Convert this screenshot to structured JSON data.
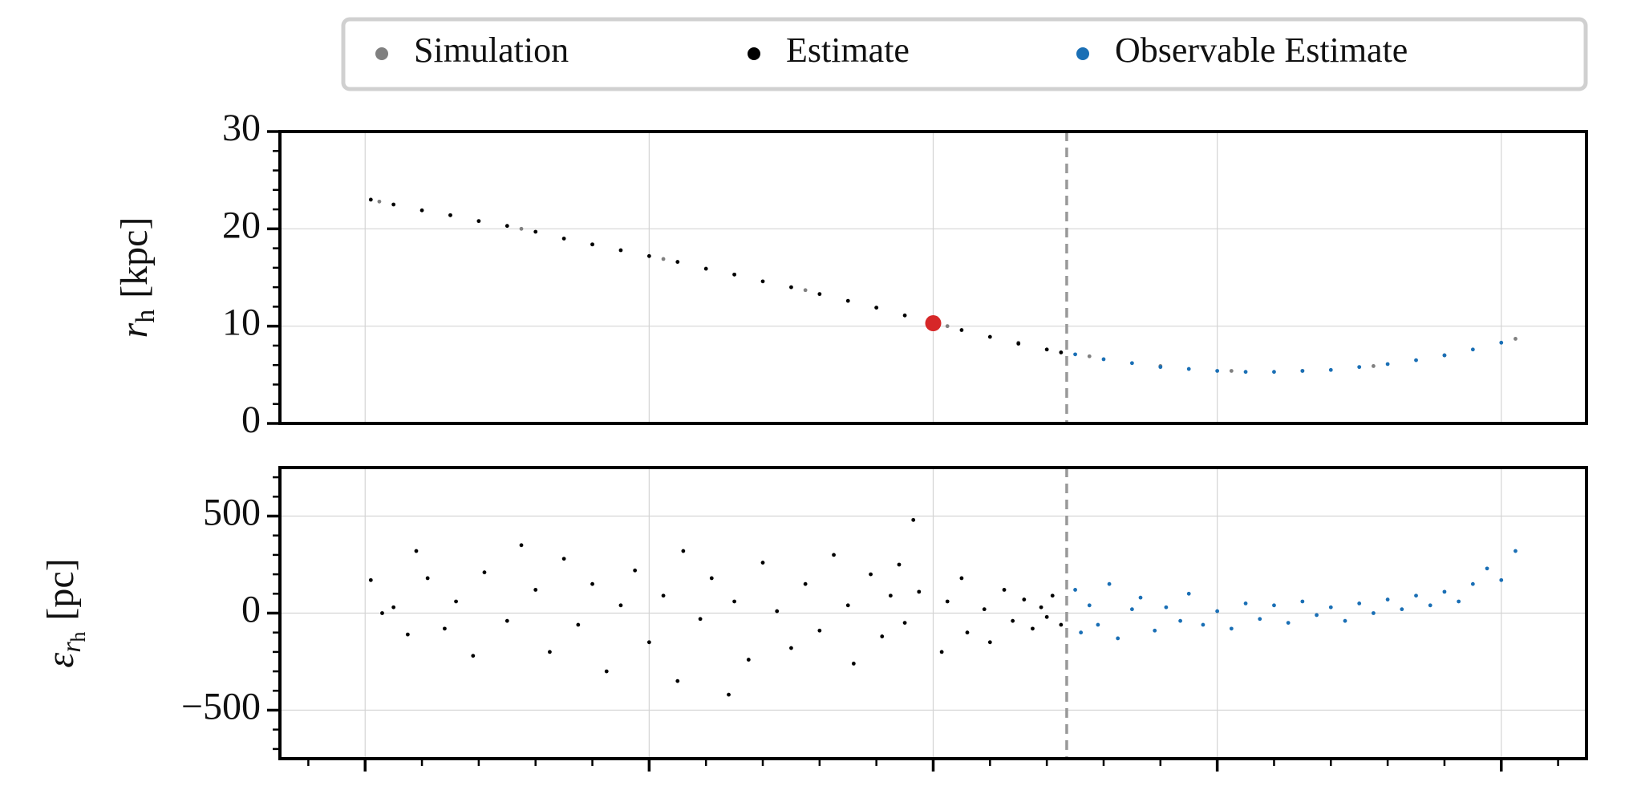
{
  "chart_data": [
    {
      "type": "scatter",
      "ylabel": {
        "symbol": "r",
        "sub": "h",
        "unit": "[kpc]"
      },
      "xlim": [
        -0.3,
        4.3
      ],
      "xticks": [
        0,
        1,
        2,
        3,
        4
      ],
      "xtick_marks": false,
      "ylim": [
        0,
        30
      ],
      "yticks": [
        0,
        10,
        20,
        30
      ],
      "yminorticks": [
        2,
        4,
        6,
        8,
        12,
        14,
        16,
        18,
        22,
        24,
        26,
        28
      ],
      "grid": true,
      "vline": 2.47,
      "legend": "top",
      "series": [
        {
          "name": "Simulation",
          "color": "#808080",
          "x": [
            0.05,
            0.3,
            0.55,
            0.8,
            1.05,
            1.3,
            1.55,
            1.8,
            2.05,
            2.3,
            2.55,
            2.8,
            3.05,
            3.3,
            3.55,
            3.8,
            4.05
          ],
          "values": [
            22.8,
            21.4,
            20.0,
            18.4,
            16.9,
            15.3,
            13.7,
            11.9,
            10.0,
            8.3,
            6.9,
            5.9,
            5.4,
            5.4,
            5.9,
            7.0,
            8.7
          ]
        },
        {
          "name": "Estimate",
          "color": "#000000",
          "x": [
            0.02,
            0.1,
            0.2,
            0.3,
            0.4,
            0.5,
            0.6,
            0.7,
            0.8,
            0.9,
            1.0,
            1.1,
            1.2,
            1.3,
            1.4,
            1.5,
            1.6,
            1.7,
            1.8,
            1.9,
            2.0,
            2.1,
            2.2,
            2.3,
            2.4,
            2.45
          ],
          "values": [
            23.0,
            22.5,
            21.9,
            21.4,
            20.8,
            20.3,
            19.7,
            19.0,
            18.4,
            17.8,
            17.2,
            16.6,
            15.9,
            15.3,
            14.6,
            14.0,
            13.3,
            12.6,
            11.9,
            11.1,
            10.3,
            9.6,
            8.9,
            8.2,
            7.6,
            7.3
          ]
        },
        {
          "name": "Observable Estimate",
          "color": "#1a6fb5",
          "x": [
            2.5,
            2.6,
            2.7,
            2.8,
            2.9,
            3.0,
            3.1,
            3.2,
            3.3,
            3.4,
            3.5,
            3.6,
            3.7,
            3.8,
            3.9,
            4.0
          ],
          "values": [
            7.1,
            6.6,
            6.2,
            5.8,
            5.6,
            5.4,
            5.3,
            5.3,
            5.4,
            5.5,
            5.8,
            6.1,
            6.5,
            7.0,
            7.6,
            8.3
          ]
        }
      ],
      "highlight": {
        "x": 2.0,
        "y": 10.3,
        "color": "#d62728"
      }
    },
    {
      "type": "scatter",
      "ylabel": {
        "symbol": "ε",
        "sub": "r",
        "subsub": "h",
        "unit": "[pc]"
      },
      "xlim": [
        -0.3,
        4.3
      ],
      "xticks": [
        0,
        1,
        2,
        3,
        4
      ],
      "xtick_marks": true,
      "xminorticks": [
        -0.2,
        0.2,
        0.4,
        0.6,
        0.8,
        1.2,
        1.4,
        1.6,
        1.8,
        2.2,
        2.4,
        2.6,
        2.8,
        3.2,
        3.4,
        3.6,
        3.8,
        4.2
      ],
      "ylim": [
        -750,
        750
      ],
      "yticks": [
        {
          "value": -500,
          "label": "−500"
        },
        0,
        500
      ],
      "yminorticks": [
        -700,
        -600,
        -400,
        -300,
        -200,
        -100,
        100,
        200,
        300,
        400,
        600,
        700
      ],
      "grid": true,
      "vline": 2.47,
      "series": [
        {
          "name": "Estimate",
          "color": "#000000",
          "x": [
            0.02,
            0.06,
            0.1,
            0.15,
            0.18,
            0.22,
            0.28,
            0.32,
            0.38,
            0.42,
            0.5,
            0.55,
            0.6,
            0.65,
            0.7,
            0.75,
            0.8,
            0.85,
            0.9,
            0.95,
            1.0,
            1.05,
            1.1,
            1.12,
            1.18,
            1.22,
            1.28,
            1.3,
            1.35,
            1.4,
            1.45,
            1.5,
            1.55,
            1.6,
            1.65,
            1.7,
            1.72,
            1.78,
            1.82,
            1.85,
            1.88,
            1.9,
            1.93,
            1.95,
            2.03,
            2.05,
            2.1,
            2.12,
            2.18,
            2.2,
            2.25,
            2.28,
            2.32,
            2.35,
            2.38,
            2.4,
            2.42,
            2.45
          ],
          "values": [
            170,
            0,
            30,
            -110,
            320,
            180,
            -80,
            60,
            -220,
            210,
            -40,
            350,
            120,
            -200,
            280,
            -60,
            150,
            -300,
            40,
            220,
            -150,
            90,
            -350,
            320,
            -30,
            180,
            -420,
            60,
            -240,
            260,
            10,
            -180,
            150,
            -90,
            300,
            40,
            -260,
            200,
            -120,
            90,
            250,
            -50,
            480,
            110,
            -200,
            60,
            180,
            -100,
            20,
            -150,
            120,
            -40,
            70,
            -80,
            30,
            -20,
            90,
            -60
          ]
        },
        {
          "name": "Observable Estimate",
          "color": "#1a6fb5",
          "x": [
            2.5,
            2.52,
            2.55,
            2.58,
            2.62,
            2.65,
            2.7,
            2.73,
            2.78,
            2.82,
            2.87,
            2.9,
            2.95,
            3.0,
            3.05,
            3.1,
            3.15,
            3.2,
            3.25,
            3.3,
            3.35,
            3.4,
            3.45,
            3.5,
            3.55,
            3.6,
            3.65,
            3.7,
            3.75,
            3.8,
            3.85,
            3.9,
            3.95,
            4.0,
            4.05
          ],
          "values": [
            120,
            -100,
            40,
            -60,
            150,
            -130,
            20,
            80,
            -90,
            30,
            -40,
            100,
            -60,
            10,
            -80,
            50,
            -30,
            40,
            -50,
            60,
            -10,
            30,
            -40,
            50,
            0,
            70,
            20,
            90,
            40,
            110,
            60,
            150,
            230,
            170,
            320
          ]
        }
      ]
    }
  ]
}
